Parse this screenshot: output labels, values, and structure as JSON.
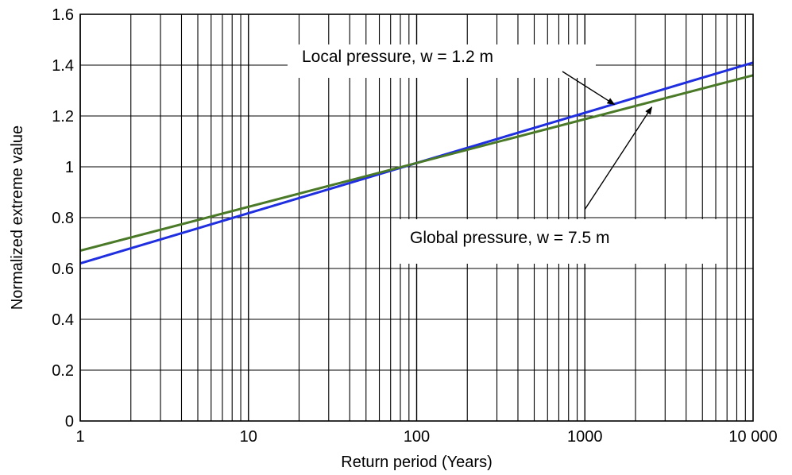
{
  "chart_data": {
    "type": "line",
    "title": "",
    "xlabel": "Return period (Years)",
    "ylabel": "Normalized extreme value",
    "xscale": "log",
    "xlim": [
      1,
      10000
    ],
    "ylim": [
      0,
      1.6
    ],
    "x_ticks": [
      1,
      10,
      100,
      1000,
      10000
    ],
    "x_tick_labels": [
      "1",
      "10",
      "100",
      "1000",
      "10 000"
    ],
    "y_ticks": [
      0,
      0.2,
      0.4,
      0.6,
      0.8,
      1,
      1.2,
      1.4,
      1.6
    ],
    "y_tick_labels": [
      "0",
      "0.2",
      "0.4",
      "0.6",
      "0.8",
      "1",
      "1.2",
      "1.4",
      "1.6"
    ],
    "grid": true,
    "legend": "none",
    "series": [
      {
        "color": "#1f2fe0",
        "x": [
          1,
          10000
        ],
        "y": [
          0.62,
          1.41
        ]
      },
      {
        "color": "#4a7a28",
        "x": [
          1,
          10000
        ],
        "y": [
          0.67,
          1.36
        ]
      }
    ],
    "annotations": [
      {
        "text": "Local pressure, w = 1.2 m",
        "points_to": {
          "x": 1500,
          "y": 1.245
        }
      },
      {
        "text": "Global pressure, w = 7.5 m",
        "points_to": {
          "x": 2500,
          "y": 1.235
        }
      }
    ]
  }
}
